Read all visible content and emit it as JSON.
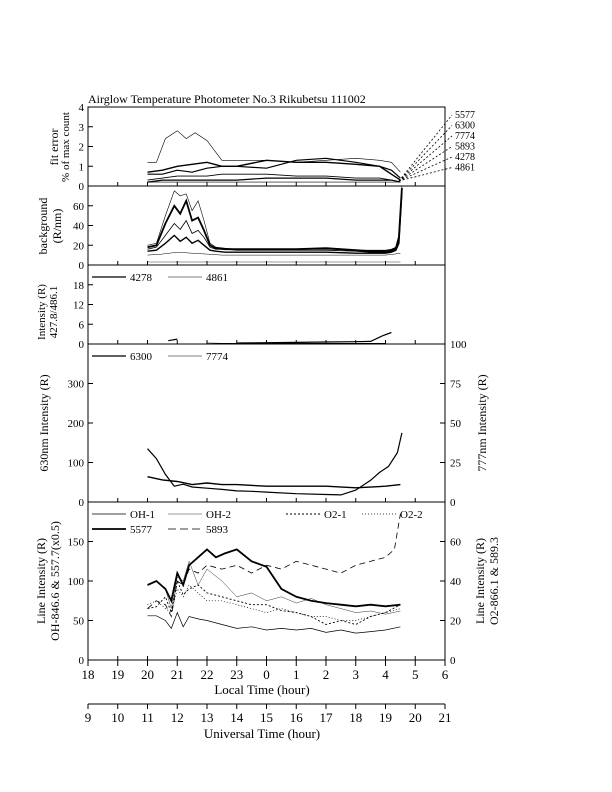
{
  "title": "Airglow Temperature Photometer No.3   Rikubetsu    111002",
  "x_axis": {
    "local": {
      "label": "Local Time (hour)",
      "ticks": [
        "18",
        "19",
        "20",
        "21",
        "22",
        "23",
        "0",
        "1",
        "2",
        "3",
        "4",
        "5",
        "6"
      ]
    },
    "universal": {
      "label": "Universal Time (hour)",
      "ticks": [
        "9",
        "10",
        "11",
        "12",
        "13",
        "14",
        "15",
        "16",
        "17",
        "18",
        "19",
        "20",
        "21"
      ]
    }
  },
  "panels": {
    "fit_error": {
      "ylabel_1": "fit error",
      "ylabel_2": "% of max count",
      "yticks": [
        "0",
        "1",
        "2",
        "3",
        "4"
      ],
      "fan_labels": [
        "5577",
        "6300",
        "7774",
        "5893",
        "4278",
        "4861"
      ]
    },
    "background": {
      "ylabel_1": "background",
      "ylabel_2": "(R/nm)",
      "yticks": [
        "0",
        "20",
        "40",
        "60"
      ]
    },
    "blue": {
      "ylabel_1": "Intensity (R)",
      "ylabel_2": "427.8/486.1",
      "yticks": [
        "0",
        "6",
        "12",
        "18"
      ],
      "legend": [
        "4278",
        "4861"
      ]
    },
    "red": {
      "ylabel_left": "630nm Intensity (R)",
      "ylabel_right": "777nm Intensity (R)",
      "yticks_left": [
        "0",
        "100",
        "200",
        "300"
      ],
      "yticks_right": [
        "0",
        "25",
        "50",
        "75",
        "100"
      ],
      "legend": [
        "6300",
        "7774"
      ]
    },
    "lines": {
      "ylabel_left_1": "Line Intensity (R)",
      "ylabel_left_2": "OH-846.6 & 557.7(x0.5)",
      "ylabel_right_1": "Line Intensity (R)",
      "ylabel_right_2": "O2-866.1 & 589.3",
      "yticks_left": [
        "0",
        "50",
        "100",
        "150"
      ],
      "yticks_right": [
        "0",
        "20",
        "40",
        "60"
      ],
      "legend": [
        "OH-1",
        "OH-2",
        "O2-1",
        "O2-2",
        "5577",
        "5893"
      ]
    }
  },
  "chart_data": [
    {
      "type": "line",
      "panel": "fit_error",
      "x_unit": "Local Time (hour, 24 = midnight)",
      "ylim": [
        0,
        4
      ],
      "series": [
        {
          "name": "5577",
          "x": [
            20,
            20.3,
            20.6,
            21,
            21.3,
            21.6,
            22,
            22.5,
            23,
            24,
            25,
            26,
            27,
            27.8,
            28.2,
            28.5
          ],
          "y": [
            1.2,
            1.2,
            2.4,
            2.8,
            2.4,
            2.7,
            2.3,
            1.3,
            1.3,
            1.3,
            1.2,
            1.3,
            1.4,
            1.3,
            1.2,
            0.7
          ]
        },
        {
          "name": "6300",
          "x": [
            20,
            20.5,
            21,
            21.5,
            22,
            22.5,
            23,
            24,
            25,
            26,
            27,
            27.8,
            28.2,
            28.5
          ],
          "y": [
            0.6,
            0.6,
            0.8,
            0.7,
            0.9,
            1.0,
            1.0,
            0.9,
            1.3,
            1.4,
            1.2,
            1.0,
            0.8,
            0.4
          ]
        },
        {
          "name": "7774",
          "x": [
            20,
            20.5,
            21,
            21.5,
            22,
            22.5,
            23,
            24,
            25,
            26,
            27,
            27.8,
            28.2,
            28.5
          ],
          "y": [
            0.7,
            0.8,
            1.0,
            1.1,
            1.2,
            1.0,
            1.0,
            1.3,
            1.2,
            1.2,
            1.1,
            1.0,
            0.6,
            0.3
          ]
        },
        {
          "name": "5893",
          "x": [
            20,
            20.5,
            21,
            21.5,
            22,
            22.5,
            23,
            24,
            25,
            26,
            27,
            27.8,
            28.2,
            28.5
          ],
          "y": [
            0.3,
            0.4,
            0.5,
            0.5,
            0.5,
            0.6,
            0.6,
            0.6,
            0.5,
            0.5,
            0.4,
            0.4,
            0.3,
            0.2
          ]
        },
        {
          "name": "4278",
          "x": [
            20,
            20.5,
            21,
            21.5,
            22,
            22.5,
            23,
            24,
            25,
            26,
            27,
            27.8,
            28.2,
            28.5
          ],
          "y": [
            0.2,
            0.3,
            0.3,
            0.3,
            0.3,
            0.3,
            0.3,
            0.4,
            0.4,
            0.4,
            0.3,
            0.3,
            0.3,
            0.2
          ]
        },
        {
          "name": "4861",
          "x": [
            20,
            20.5,
            21,
            21.5,
            22,
            22.5,
            23,
            24,
            25,
            26,
            27,
            27.8,
            28.2,
            28.5
          ],
          "y": [
            0.2,
            0.2,
            0.2,
            0.2,
            0.2,
            0.2,
            0.2,
            0.2,
            0.2,
            0.2,
            0.2,
            0.2,
            0.2,
            0.2
          ]
        }
      ]
    },
    {
      "type": "line",
      "panel": "background",
      "ylim": [
        0,
        80
      ],
      "series": [
        {
          "name": "bg-1",
          "x": [
            20,
            20.3,
            20.6,
            20.9,
            21.1,
            21.3,
            21.5,
            21.7,
            21.9,
            22.1,
            22.3,
            22.6,
            23,
            24,
            25,
            26,
            27,
            27.5,
            28,
            28.2,
            28.35,
            28.45,
            28.55
          ],
          "y": [
            20,
            22,
            50,
            75,
            70,
            72,
            55,
            65,
            45,
            22,
            18,
            17,
            16,
            16,
            16,
            16,
            15,
            15,
            15,
            16,
            18,
            30,
            80
          ]
        },
        {
          "name": "bg-2",
          "x": [
            20,
            20.3,
            20.6,
            20.9,
            21.1,
            21.3,
            21.5,
            21.7,
            21.9,
            22.1,
            22.3,
            22.6,
            23,
            24,
            25,
            26,
            27,
            27.5,
            28,
            28.2,
            28.35,
            28.45,
            28.55
          ],
          "y": [
            18,
            20,
            42,
            60,
            52,
            65,
            45,
            48,
            35,
            20,
            17,
            16,
            16,
            16,
            16,
            17,
            15,
            14,
            14,
            15,
            17,
            28,
            78
          ]
        },
        {
          "name": "bg-3",
          "x": [
            20,
            20.3,
            20.6,
            20.9,
            21.1,
            21.3,
            21.5,
            21.7,
            21.9,
            22.1,
            22.3,
            22.6,
            23,
            24,
            25,
            26,
            27,
            27.5,
            28,
            28.2,
            28.35,
            28.45,
            28.55
          ],
          "y": [
            16,
            18,
            30,
            42,
            36,
            45,
            32,
            35,
            28,
            18,
            16,
            16,
            15,
            15,
            15,
            15,
            14,
            13,
            13,
            14,
            16,
            25,
            76
          ]
        },
        {
          "name": "bg-4",
          "x": [
            20,
            20.3,
            20.6,
            20.9,
            21.1,
            21.3,
            21.5,
            21.7,
            21.9,
            22.1,
            22.3,
            22.6,
            23,
            24,
            25,
            26,
            27,
            27.5,
            28,
            28.2,
            28.35,
            28.45,
            28.55
          ],
          "y": [
            14,
            15,
            22,
            30,
            24,
            28,
            22,
            25,
            20,
            15,
            14,
            13,
            13,
            13,
            13,
            13,
            12,
            12,
            12,
            13,
            15,
            22,
            74
          ]
        },
        {
          "name": "bg-5",
          "x": [
            20,
            20.5,
            21,
            21.5,
            22,
            22.5,
            23,
            24,
            25,
            26,
            27,
            28,
            28.3,
            28.5
          ],
          "y": [
            10,
            11,
            13,
            12,
            11,
            10,
            10,
            10,
            10,
            10,
            10,
            10,
            11,
            12
          ]
        },
        {
          "name": "bg-6",
          "x": [
            20,
            21,
            22,
            23,
            24,
            25,
            26,
            27,
            28,
            28.5
          ],
          "y": [
            3,
            3,
            3,
            3,
            3,
            3,
            3,
            3,
            3,
            3
          ]
        }
      ]
    },
    {
      "type": "line",
      "panel": "blue",
      "ylim": [
        0,
        24
      ],
      "series": [
        {
          "name": "4278",
          "x": [
            23,
            24,
            25,
            26,
            27,
            27.5,
            27.9,
            28.2
          ],
          "y": [
            0.3,
            0.4,
            0.5,
            0.6,
            0.7,
            0.8,
            2.5,
            3.5
          ]
        },
        {
          "name": "4278-seg",
          "x": [
            20.7,
            21
          ],
          "y": [
            1.0,
            1.5
          ]
        },
        {
          "name": "4861",
          "x": [
            22,
            22.5,
            23,
            24,
            25,
            26,
            27,
            27.5,
            28
          ],
          "y": [
            0.3,
            0.2,
            0.2,
            0.2,
            0.2,
            0.2,
            0.2,
            0.2,
            0.2
          ]
        }
      ]
    },
    {
      "type": "line",
      "panel": "red",
      "ylim_left": [
        0,
        400
      ],
      "ylim_right": [
        0,
        100
      ],
      "series": [
        {
          "name": "6300",
          "axis": "left",
          "x": [
            20,
            20.3,
            20.6,
            20.9,
            21.2,
            21.5,
            22,
            22.5,
            23,
            23.5,
            24,
            25,
            26,
            26.5,
            27,
            27.5,
            27.8,
            28.1,
            28.4,
            28.55
          ],
          "y": [
            135,
            110,
            70,
            40,
            45,
            38,
            35,
            32,
            28,
            27,
            25,
            21,
            19,
            18,
            30,
            55,
            75,
            90,
            125,
            175
          ]
        },
        {
          "name": "7774",
          "axis": "right",
          "x": [
            20,
            20.5,
            21,
            21.5,
            22,
            22.5,
            23,
            24,
            25,
            26,
            27,
            28,
            28.5
          ],
          "y": [
            16,
            14,
            13,
            11,
            12,
            11,
            11,
            10,
            10,
            10,
            9,
            10,
            11
          ]
        }
      ]
    },
    {
      "type": "line",
      "panel": "lines",
      "ylim_left": [
        0,
        200
      ],
      "ylim_right": [
        0,
        80
      ],
      "series": [
        {
          "name": "OH-1",
          "axis": "left",
          "x": [
            20,
            20.3,
            20.6,
            20.8,
            21,
            21.2,
            21.4,
            21.7,
            22,
            22.5,
            23,
            23.5,
            24,
            24.5,
            25,
            25.5,
            26,
            26.5,
            27,
            27.5,
            28,
            28.5
          ],
          "y": [
            56,
            56,
            50,
            40,
            60,
            42,
            55,
            52,
            50,
            45,
            40,
            42,
            38,
            40,
            38,
            40,
            35,
            38,
            34,
            36,
            38,
            42
          ]
        },
        {
          "name": "OH-2",
          "axis": "left",
          "x": [
            20,
            20.3,
            20.6,
            20.8,
            21,
            21.2,
            21.4,
            21.7,
            22,
            22.5,
            23,
            23.5,
            24,
            24.5,
            25,
            25.5,
            26,
            26.5,
            27,
            27.5,
            28,
            28.5
          ],
          "y": [
            95,
            100,
            90,
            65,
            105,
            100,
            125,
            95,
            115,
            100,
            80,
            85,
            75,
            80,
            72,
            78,
            70,
            65,
            60,
            62,
            58,
            62
          ]
        },
        {
          "name": "5577",
          "axis": "left",
          "x": [
            20,
            20.3,
            20.6,
            20.8,
            21,
            21.2,
            21.4,
            21.7,
            22,
            22.3,
            22.6,
            23,
            23.5,
            24,
            24.5,
            25,
            25.5,
            26,
            26.5,
            27,
            27.5,
            28,
            28.5
          ],
          "y": [
            95,
            100,
            90,
            75,
            110,
            95,
            120,
            130,
            140,
            130,
            135,
            140,
            125,
            118,
            90,
            80,
            75,
            72,
            70,
            68,
            70,
            68,
            70
          ]
        },
        {
          "name": "O2-1",
          "axis": "right",
          "x": [
            20,
            20.3,
            20.6,
            20.8,
            21,
            21.2,
            21.4,
            21.7,
            22,
            22.5,
            23,
            23.5,
            24,
            24.5,
            25,
            25.5,
            26,
            26.5,
            27,
            27.5,
            28,
            28.5
          ],
          "y": [
            26,
            27,
            32,
            24,
            40,
            33,
            36,
            38,
            34,
            32,
            30,
            28,
            28,
            25,
            24,
            22,
            18,
            20,
            18,
            22,
            24,
            28
          ]
        },
        {
          "name": "O2-2",
          "axis": "right",
          "x": [
            20,
            20.3,
            20.6,
            20.8,
            21,
            21.2,
            21.4,
            21.7,
            22,
            22.5,
            23,
            23.5,
            24,
            24.5,
            25,
            25.5,
            26,
            26.5,
            27,
            27.5,
            28,
            28.3,
            28.5
          ],
          "y": [
            26,
            30,
            28,
            22,
            40,
            38,
            46,
            44,
            48,
            46,
            48,
            44,
            48,
            46,
            50,
            48,
            46,
            44,
            48,
            50,
            52,
            56,
            74
          ]
        },
        {
          "name": "5893",
          "axis": "right",
          "x": [
            20,
            20.3,
            20.6,
            20.8,
            21,
            21.2,
            21.4,
            21.7,
            22,
            22.5,
            23,
            23.5,
            24,
            24.5,
            25,
            25.5,
            26,
            26.5,
            27,
            27.5,
            28,
            28.5
          ],
          "y": [
            28,
            30,
            26,
            24,
            36,
            32,
            38,
            34,
            30,
            30,
            28,
            26,
            24,
            26,
            24,
            22,
            22,
            20,
            20,
            22,
            24,
            26
          ]
        }
      ]
    }
  ]
}
